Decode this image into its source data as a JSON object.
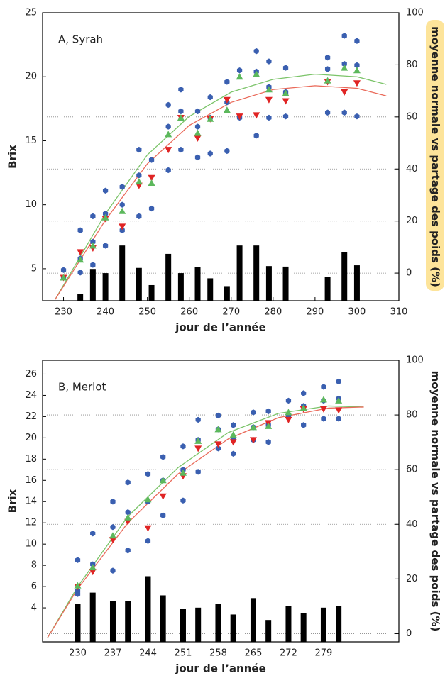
{
  "chart_data": [
    {
      "type": "scatter",
      "annotation": "A, Syrah",
      "xlabel": "jour de l’année",
      "ylabel": "Brix",
      "y2label": "moyenne normale vs partage des poids (%)",
      "xlim": [
        225,
        310
      ],
      "xticks": [
        230,
        240,
        250,
        260,
        270,
        280,
        290,
        300,
        310
      ],
      "ylim": [
        2.5,
        25
      ],
      "yticks": [
        5,
        10,
        15,
        20,
        25
      ],
      "y2lim": [
        -10.6,
        100
      ],
      "y2ticks": [
        0,
        20,
        40,
        60,
        80,
        100
      ],
      "grid": "y2",
      "series": [
        {
          "type": "bar",
          "axis": "y2",
          "color": "#000000",
          "x": [
            234,
            237,
            240,
            244,
            248,
            251,
            255,
            258,
            262,
            265,
            269,
            272,
            276,
            279,
            283,
            293,
            297,
            300
          ],
          "values": [
            -8,
            1.6,
            0,
            10.6,
            2,
            -4.6,
            7.4,
            0,
            2.2,
            -2,
            -5,
            10.6,
            10.6,
            2.7,
            2.5,
            -1.5,
            8,
            3
          ]
        },
        {
          "type": "line",
          "color": "#7cc46a",
          "x": [
            228,
            240,
            250,
            260,
            270,
            280,
            290,
            300,
            307
          ],
          "values": [
            2.6,
            9.3,
            13.9,
            16.9,
            18.8,
            19.8,
            20.2,
            20.0,
            19.4
          ]
        },
        {
          "type": "line",
          "color": "#ea6a5a",
          "x": [
            228,
            240,
            250,
            260,
            270,
            280,
            290,
            300,
            307
          ],
          "values": [
            2.6,
            8.8,
            13.2,
            16.2,
            18.0,
            19.0,
            19.3,
            19.1,
            18.5
          ]
        },
        {
          "type": "scatter",
          "marker": "hexagon",
          "color": "#3a5fb0",
          "x": [
            230,
            230,
            234,
            234,
            234,
            237,
            237,
            237,
            240,
            240,
            240,
            244,
            244,
            244,
            248,
            248,
            248,
            251,
            251,
            255,
            255,
            255,
            258,
            258,
            258,
            262,
            262,
            262,
            265,
            265,
            265,
            269,
            269,
            269,
            272,
            272,
            276,
            276,
            276,
            279,
            279,
            279,
            283,
            283,
            283,
            293,
            293,
            293,
            297,
            297,
            297,
            300,
            300,
            300
          ],
          "values": [
            4.9,
            4.3,
            8.0,
            5.8,
            4.7,
            9.1,
            7.1,
            5.3,
            11.1,
            9.3,
            6.8,
            11.4,
            10.0,
            8.0,
            14.3,
            12.3,
            9.1,
            13.5,
            9.7,
            17.8,
            16.1,
            12.7,
            19.0,
            17.3,
            14.3,
            17.3,
            16.1,
            13.7,
            18.4,
            16.8,
            14.0,
            19.6,
            18.0,
            14.2,
            20.5,
            16.8,
            22.0,
            20.4,
            15.4,
            21.2,
            19.2,
            16.8,
            20.7,
            18.8,
            16.9,
            21.5,
            20.6,
            17.2,
            23.2,
            21.0,
            17.2,
            22.8,
            20.9,
            16.9
          ]
        },
        {
          "type": "scatter",
          "marker": "triangle-down",
          "color": "#e02424",
          "x": [
            230,
            234,
            237,
            240,
            244,
            248,
            251,
            255,
            258,
            262,
            265,
            269,
            272,
            276,
            279,
            283,
            293,
            297,
            300
          ],
          "values": [
            4.3,
            6.3,
            6.6,
            8.9,
            8.3,
            11.5,
            12.1,
            14.3,
            16.8,
            15.2,
            16.7,
            18.2,
            16.9,
            17.0,
            18.2,
            18.1,
            19.6,
            18.8,
            19.5
          ]
        },
        {
          "type": "scatter",
          "marker": "triangle-up",
          "color": "#5cb85c",
          "x": [
            230,
            234,
            237,
            240,
            244,
            248,
            251,
            255,
            258,
            262,
            265,
            269,
            272,
            276,
            279,
            283,
            293,
            297,
            300
          ],
          "values": [
            4.3,
            5.7,
            6.8,
            9.0,
            9.5,
            11.8,
            11.7,
            15.5,
            16.8,
            15.6,
            16.7,
            17.4,
            20.0,
            20.2,
            19.0,
            18.7,
            19.7,
            20.7,
            20.5
          ]
        }
      ]
    },
    {
      "type": "scatter",
      "annotation": "B, Merlot",
      "xlabel": "jour de l’année",
      "ylabel": "Brix",
      "y2label": "moyenne normale vs partage des poids (%)",
      "xlim": [
        223,
        294
      ],
      "xticks": [
        230,
        237,
        244,
        251,
        258,
        265,
        272,
        279
      ],
      "ylim": [
        0.8,
        27.3
      ],
      "yticks": [
        4,
        6,
        8,
        10,
        12,
        14,
        16,
        18,
        20,
        22,
        24,
        26
      ],
      "y2lim": [
        -3,
        100
      ],
      "y2ticks": [
        0,
        20,
        40,
        60,
        80,
        100
      ],
      "grid": "y2",
      "series": [
        {
          "type": "bar",
          "axis": "y2",
          "color": "#000000",
          "x": [
            230,
            233,
            237,
            240,
            244,
            247,
            251,
            254,
            258,
            261,
            265,
            268,
            272,
            275,
            279,
            282
          ],
          "values": [
            11,
            15,
            12,
            12,
            21,
            14,
            9,
            9.5,
            11,
            7,
            13,
            5,
            10,
            7.5,
            9.5,
            10
          ]
        },
        {
          "type": "line",
          "color": "#7cc46a",
          "x": [
            224,
            230,
            240,
            250,
            260,
            270,
            280,
            287
          ],
          "values": [
            1.2,
            6.0,
            12.6,
            17.2,
            20.5,
            22.3,
            23.0,
            22.9
          ]
        },
        {
          "type": "line",
          "color": "#ea6a5a",
          "x": [
            224,
            230,
            240,
            250,
            260,
            270,
            280,
            287
          ],
          "values": [
            1.2,
            5.8,
            12.0,
            16.6,
            19.9,
            21.9,
            22.8,
            22.9
          ]
        },
        {
          "type": "scatter",
          "marker": "hexagon",
          "color": "#3a5fb0",
          "x": [
            230,
            230,
            230,
            233,
            233,
            237,
            237,
            237,
            240,
            240,
            240,
            244,
            244,
            244,
            247,
            247,
            247,
            251,
            251,
            251,
            254,
            254,
            254,
            258,
            258,
            258,
            261,
            261,
            261,
            265,
            265,
            265,
            268,
            268,
            268,
            272,
            272,
            275,
            275,
            275,
            279,
            279,
            279,
            282,
            282,
            282
          ],
          "values": [
            8.5,
            5.6,
            5.3,
            11.0,
            8.1,
            14.0,
            11.6,
            7.5,
            15.8,
            13.0,
            9.4,
            16.6,
            14.0,
            10.3,
            18.2,
            16.0,
            12.7,
            19.2,
            17.0,
            14.1,
            21.7,
            19.8,
            16.8,
            22.1,
            20.8,
            19.0,
            21.2,
            20.0,
            18.5,
            22.4,
            21.0,
            19.8,
            22.5,
            21.2,
            19.6,
            23.5,
            22.0,
            24.2,
            23.0,
            21.2,
            24.8,
            23.5,
            21.8,
            25.3,
            23.7,
            21.8
          ]
        },
        {
          "type": "scatter",
          "marker": "triangle-down",
          "color": "#e02424",
          "x": [
            230,
            233,
            237,
            240,
            244,
            247,
            251,
            254,
            258,
            261,
            265,
            268,
            272,
            275,
            279,
            282
          ],
          "values": [
            6.0,
            7.4,
            10.4,
            12.1,
            11.5,
            14.5,
            16.4,
            19.0,
            19.4,
            19.6,
            19.8,
            21.4,
            21.7,
            22.7,
            22.7,
            22.6
          ]
        },
        {
          "type": "scatter",
          "marker": "triangle-up",
          "color": "#5cb85c",
          "x": [
            230,
            233,
            237,
            240,
            244,
            247,
            251,
            254,
            258,
            261,
            265,
            268,
            272,
            275,
            279,
            282
          ],
          "values": [
            6.1,
            7.8,
            10.8,
            12.5,
            14.2,
            16.0,
            16.7,
            19.7,
            20.8,
            20.3,
            21.0,
            21.1,
            22.4,
            22.8,
            23.6,
            23.5
          ]
        }
      ]
    }
  ]
}
